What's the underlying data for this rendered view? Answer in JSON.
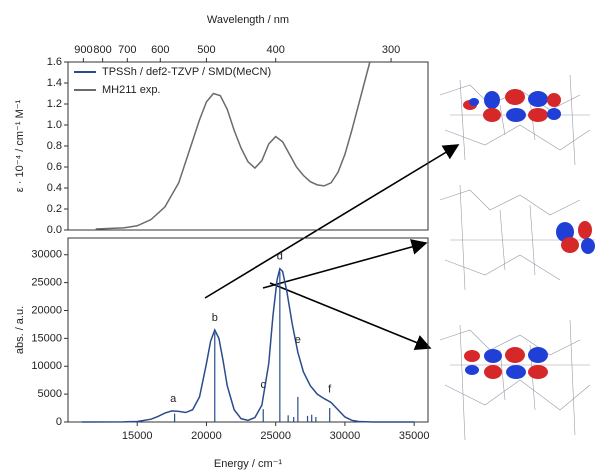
{
  "chart_data": [
    {
      "type": "line",
      "x2label": "Wavelength / nm",
      "ylabel": "ε · 10⁻⁴ / cm⁻¹ M⁻¹",
      "xlim": [
        10000,
        36000
      ],
      "ylim": [
        0,
        1.6
      ],
      "yticks": [
        {
          "value": 0,
          "label": "0.0"
        },
        0.2,
        0.4,
        0.6,
        0.8,
        {
          "value": 1,
          "label": "1.0"
        },
        1.2,
        1.4,
        1.6
      ],
      "x2ticks": [
        900,
        800,
        700,
        600,
        500,
        400,
        300
      ],
      "legend": "upper left",
      "series": [
        {
          "name": "TPSSh / def2-TZVP / SMD(MeCN)",
          "color": "#2b4c8c"
        },
        {
          "name": "MH211 exp.",
          "color": "#6b6b6b",
          "x": [
            12000,
            14000,
            15000,
            16000,
            17000,
            18000,
            19000,
            19500,
            20000,
            20500,
            21000,
            21500,
            22000,
            22500,
            23000,
            23500,
            24000,
            24500,
            25000,
            25500,
            26000,
            26500,
            27000,
            27500,
            28000,
            28500,
            29000,
            29500,
            30000,
            30500,
            31000,
            31500,
            31800
          ],
          "values": [
            0.01,
            0.02,
            0.04,
            0.1,
            0.22,
            0.45,
            0.85,
            1.05,
            1.22,
            1.3,
            1.28,
            1.15,
            0.95,
            0.78,
            0.65,
            0.59,
            0.66,
            0.82,
            0.89,
            0.84,
            0.72,
            0.6,
            0.52,
            0.46,
            0.43,
            0.42,
            0.45,
            0.55,
            0.72,
            0.95,
            1.2,
            1.45,
            1.6
          ]
        }
      ]
    },
    {
      "type": "line",
      "xlabel": "Energy / cm⁻¹",
      "ylabel": "abs. / a.u.",
      "xlim": [
        10000,
        36000
      ],
      "ylim": [
        0,
        33000
      ],
      "xticks": [
        15000,
        20000,
        25000,
        30000,
        35000
      ],
      "yticks": [
        0,
        5000,
        10000,
        15000,
        20000,
        25000,
        30000
      ],
      "series": [
        {
          "color": "#2b4c8c",
          "x": [
            11000,
            14000,
            15000,
            16000,
            16500,
            17000,
            17500,
            18000,
            18500,
            19000,
            19500,
            20000,
            20300,
            20600,
            20900,
            21200,
            21500,
            22000,
            22500,
            23000,
            23500,
            24000,
            24500,
            24800,
            25100,
            25300,
            25500,
            25800,
            26200,
            26600,
            27000,
            27500,
            28000,
            28500,
            29000,
            29500,
            30000,
            30500,
            31000,
            32000,
            35000
          ],
          "values": [
            0,
            20,
            100,
            500,
            1000,
            1600,
            2000,
            1900,
            1700,
            2200,
            4500,
            10500,
            14500,
            16500,
            15000,
            11000,
            6500,
            2200,
            600,
            300,
            800,
            3000,
            10500,
            19000,
            25500,
            27500,
            27000,
            23500,
            17500,
            12500,
            9000,
            6500,
            5000,
            4200,
            3500,
            2200,
            900,
            300,
            80,
            0,
            0
          ]
        }
      ],
      "sticks": {
        "color": "#2b4c8c",
        "x": [
          17700,
          20600,
          24100,
          25300,
          25900,
          26300,
          26600,
          27300,
          27600,
          27900,
          28900
        ],
        "values": [
          1500,
          16000,
          2300,
          27000,
          1200,
          900,
          4500,
          1100,
          1300,
          900,
          2500
        ]
      },
      "annotations": [
        {
          "text": "a",
          "x": 17600
        },
        {
          "text": "b",
          "x": 20600
        },
        {
          "text": "c",
          "x": 24100
        },
        {
          "text": "d",
          "x": 25300
        },
        {
          "text": "e",
          "x": 26600
        },
        {
          "text": "f",
          "x": 28900
        }
      ]
    }
  ]
}
